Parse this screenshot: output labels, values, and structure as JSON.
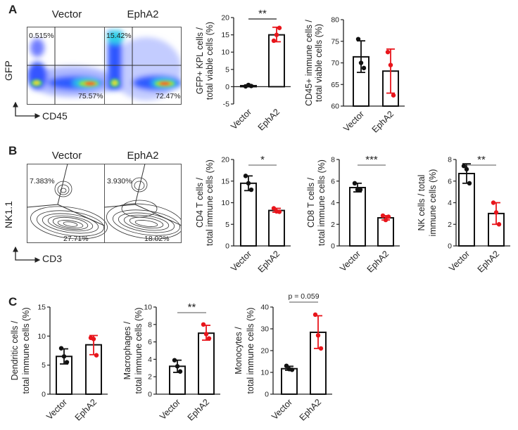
{
  "panels": {
    "a": "A",
    "b": "B",
    "c": "C"
  },
  "flow_a": {
    "titles": [
      "Vector",
      "EphA2"
    ],
    "y_axis": "GFP",
    "x_axis": "CD45",
    "gates": {
      "vector_upper_left": "0.515%",
      "vector_lower_right": "75.57%",
      "epha2_upper_left": "15.42%",
      "epha2_lower_right": "72.47%"
    }
  },
  "flow_b": {
    "titles": [
      "Vector",
      "EphA2"
    ],
    "y_axis": "NK1.1",
    "x_axis": "CD3",
    "gates": {
      "vector_nk": "7.383%",
      "vector_t": "27.71%",
      "epha2_nk": "3.930%",
      "epha2_t": "18.02%"
    }
  },
  "colors": {
    "vector": "#111111",
    "epha2": "#e8151b"
  },
  "chart_data": [
    {
      "type": "bar",
      "id": "gfp_kpl",
      "ylabel": [
        "GFP+ KPL cells /",
        "total viable cells (%)"
      ],
      "categories": [
        "Vector",
        "EphA2"
      ],
      "ylim": [
        -5,
        20
      ],
      "yticks": [
        -5,
        0,
        5,
        10,
        15,
        20
      ],
      "values": [
        0.3,
        15.0
      ],
      "points": [
        [
          0.1,
          0.5,
          0.2
        ],
        [
          13.3,
          15.0,
          17.0
        ]
      ],
      "error": [
        [
          0.05,
          0.5
        ],
        [
          13.0,
          17.2
        ]
      ],
      "significance": "**"
    },
    {
      "type": "bar",
      "id": "cd45",
      "ylabel": [
        "CD45+ immune cells /",
        "total viable cells (%)"
      ],
      "categories": [
        "Vector",
        "EphA2"
      ],
      "ylim": [
        60,
        80
      ],
      "yticks": [
        60,
        65,
        70,
        75,
        80
      ],
      "values": [
        71.4,
        68.1
      ],
      "points": [
        [
          75.5,
          70.0,
          68.8
        ],
        [
          72.5,
          69.5,
          62.5
        ]
      ],
      "error": [
        [
          67.8,
          75.1
        ],
        [
          63.0,
          73.2
        ]
      ],
      "significance": ""
    },
    {
      "type": "bar",
      "id": "cd4",
      "ylabel": [
        "CD4 T cells /",
        "total immune cells (%)"
      ],
      "categories": [
        "Vector",
        "EphA2"
      ],
      "ylim": [
        0,
        20
      ],
      "yticks": [
        0,
        5,
        10,
        15,
        20
      ],
      "values": [
        14.5,
        8.2
      ],
      "points": [
        [
          16.2,
          14.5,
          13.0
        ],
        [
          8.7,
          8.0,
          7.9
        ]
      ],
      "error": [
        [
          12.8,
          16.2
        ],
        [
          7.8,
          8.7
        ]
      ],
      "significance": "*"
    },
    {
      "type": "bar",
      "id": "cd8",
      "ylabel": [
        "CD8 T cells /",
        "total immune cells (%)"
      ],
      "categories": [
        "Vector",
        "EphA2"
      ],
      "ylim": [
        0,
        8
      ],
      "yticks": [
        0,
        2,
        4,
        6,
        8
      ],
      "values": [
        5.4,
        2.6
      ],
      "points": [
        [
          5.8,
          5.2,
          5.2
        ],
        [
          2.8,
          2.4,
          2.7
        ]
      ],
      "error": [
        [
          5.0,
          5.8
        ],
        [
          2.4,
          2.8
        ]
      ],
      "significance": "***"
    },
    {
      "type": "bar",
      "id": "nk",
      "ylabel": [
        "NK cells / total",
        "immune cells (%)"
      ],
      "categories": [
        "Vector",
        "EphA2"
      ],
      "ylim": [
        0,
        8
      ],
      "yticks": [
        0,
        2,
        4,
        6,
        8
      ],
      "values": [
        6.7,
        3.0
      ],
      "points": [
        [
          7.4,
          7.1,
          5.8
        ],
        [
          4.0,
          3.1,
          2.0
        ]
      ],
      "error": [
        [
          5.8,
          7.6
        ],
        [
          2.0,
          4.0
        ]
      ],
      "significance": "**"
    },
    {
      "type": "bar",
      "id": "dc",
      "ylabel": [
        "Dendritic cells /",
        "total immune cells (%)"
      ],
      "categories": [
        "Vector",
        "EphA2"
      ],
      "ylim": [
        0,
        15
      ],
      "yticks": [
        0,
        5,
        10,
        15
      ],
      "values": [
        6.5,
        8.5
      ],
      "points": [
        [
          7.9,
          6.5,
          5.5
        ],
        [
          9.7,
          9.5,
          6.7
        ]
      ],
      "error": [
        [
          5.2,
          7.8
        ],
        [
          6.8,
          10.1
        ]
      ],
      "significance": ""
    },
    {
      "type": "bar",
      "id": "macrophages",
      "ylabel": [
        "Macrophages /",
        "total immune cells (%)"
      ],
      "categories": [
        "Vector",
        "EphA2"
      ],
      "ylim": [
        0,
        10
      ],
      "yticks": [
        0,
        2,
        4,
        6,
        8,
        10
      ],
      "values": [
        3.2,
        7.0
      ],
      "points": [
        [
          3.9,
          3.2,
          2.6
        ],
        [
          8.0,
          6.9,
          6.4
        ]
      ],
      "error": [
        [
          2.5,
          3.9
        ],
        [
          6.2,
          7.9
        ]
      ],
      "significance": "**"
    },
    {
      "type": "bar",
      "id": "monocytes",
      "ylabel": [
        "Monocytes /",
        "total immune cells (%)"
      ],
      "categories": [
        "Vector",
        "EphA2"
      ],
      "ylim": [
        0,
        40
      ],
      "yticks": [
        0,
        10,
        20,
        30,
        40
      ],
      "values": [
        11.7,
        28.4
      ],
      "points": [
        [
          13.0,
          11.5,
          11.2
        ],
        [
          36.5,
          27.0,
          21.0
        ]
      ],
      "error": [
        [
          11.0,
          12.8
        ],
        [
          21.0,
          36.0
        ]
      ],
      "significance": "p = 0.059"
    }
  ]
}
